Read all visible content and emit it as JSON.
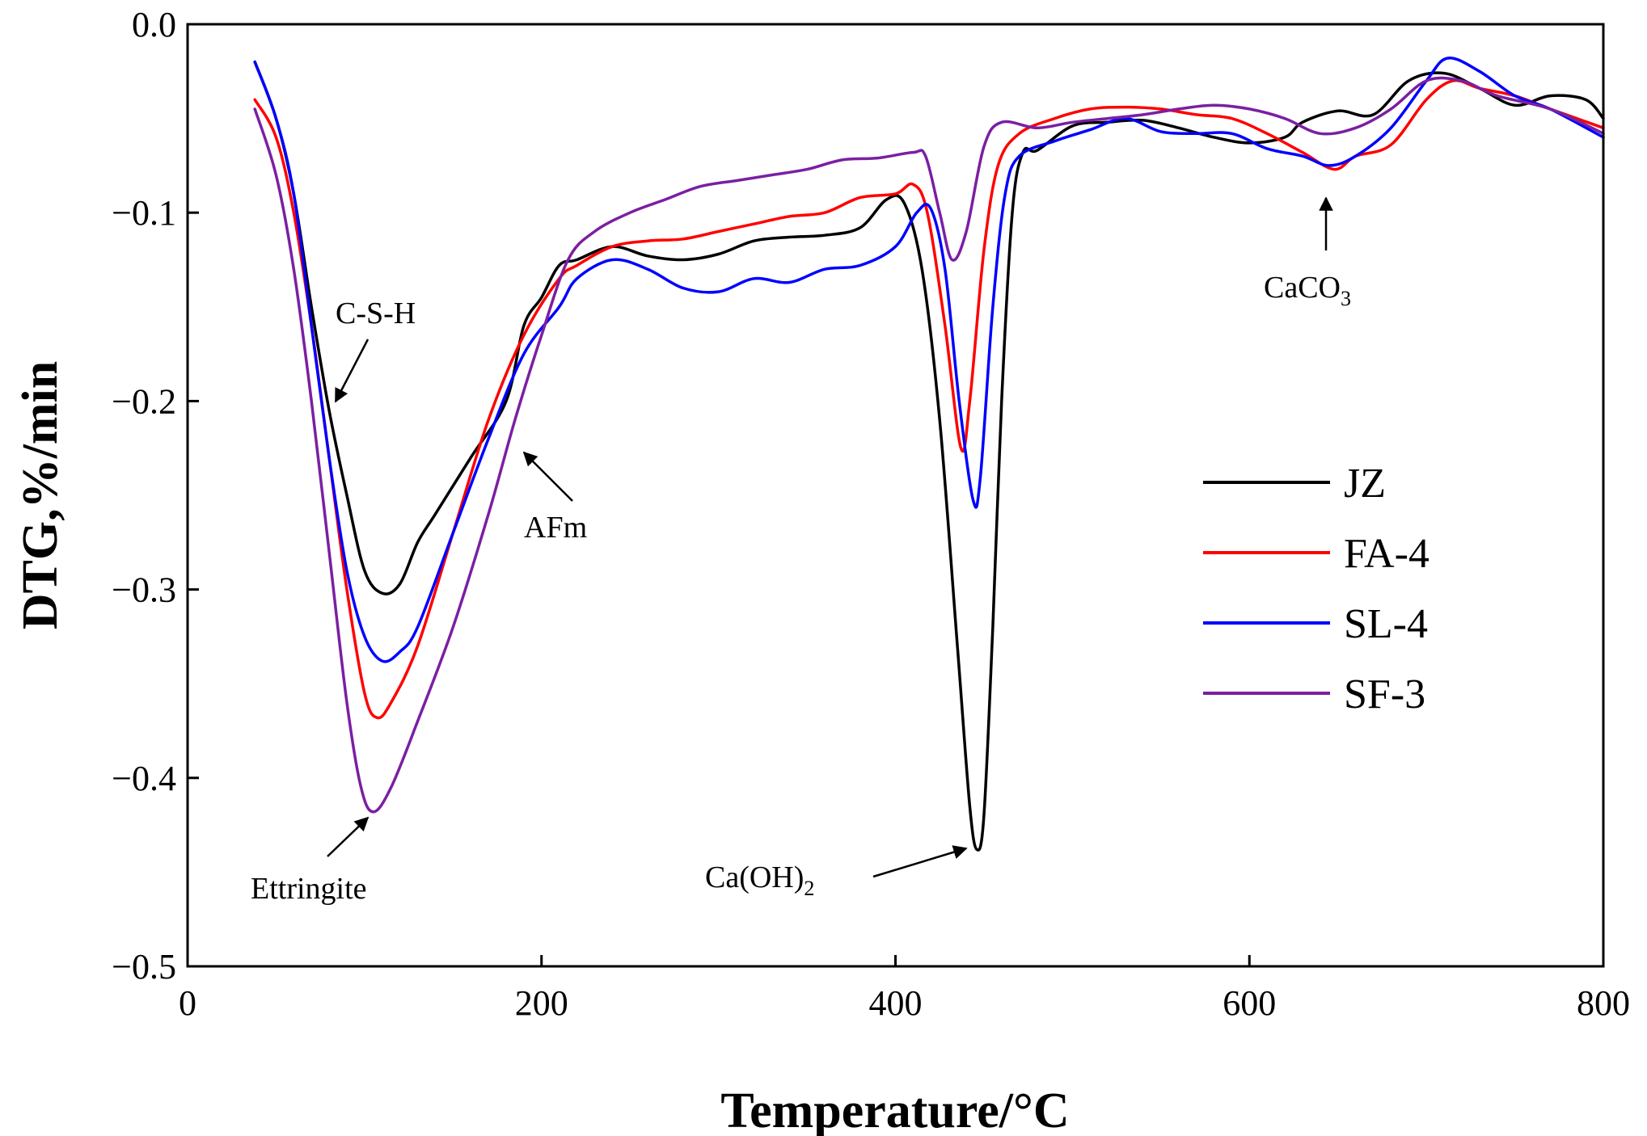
{
  "chart_data": {
    "type": "line",
    "title": "",
    "xlabel": "Temperature/°C",
    "ylabel": "DTG,%/min",
    "xlim": [
      0,
      800
    ],
    "ylim": [
      -0.5,
      0.0
    ],
    "xticks": [
      0,
      200,
      400,
      600,
      800
    ],
    "xtick_labels": [
      "0",
      "200",
      "400",
      "600",
      "800"
    ],
    "yticks": [
      0.0,
      -0.1,
      -0.2,
      -0.3,
      -0.4,
      -0.5
    ],
    "ytick_labels": [
      "0.0",
      "−0.1",
      "−0.2",
      "−0.3",
      "−0.4",
      "−0.5"
    ],
    "grid": false,
    "legend_position": "right-center",
    "series": [
      {
        "name": "JZ",
        "color": "#000000",
        "points": [
          [
            38,
            -0.02
          ],
          [
            50,
            -0.05
          ],
          [
            60,
            -0.09
          ],
          [
            70,
            -0.15
          ],
          [
            80,
            -0.205
          ],
          [
            90,
            -0.25
          ],
          [
            100,
            -0.29
          ],
          [
            110,
            -0.302
          ],
          [
            120,
            -0.297
          ],
          [
            130,
            -0.275
          ],
          [
            140,
            -0.26
          ],
          [
            160,
            -0.23
          ],
          [
            180,
            -0.2
          ],
          [
            190,
            -0.16
          ],
          [
            200,
            -0.145
          ],
          [
            210,
            -0.128
          ],
          [
            220,
            -0.125
          ],
          [
            240,
            -0.118
          ],
          [
            260,
            -0.123
          ],
          [
            280,
            -0.125
          ],
          [
            300,
            -0.122
          ],
          [
            320,
            -0.115
          ],
          [
            340,
            -0.113
          ],
          [
            360,
            -0.112
          ],
          [
            380,
            -0.108
          ],
          [
            395,
            -0.093
          ],
          [
            405,
            -0.095
          ],
          [
            415,
            -0.13
          ],
          [
            425,
            -0.21
          ],
          [
            435,
            -0.33
          ],
          [
            442,
            -0.415
          ],
          [
            446,
            -0.438
          ],
          [
            450,
            -0.42
          ],
          [
            455,
            -0.32
          ],
          [
            460,
            -0.2
          ],
          [
            466,
            -0.1
          ],
          [
            472,
            -0.068
          ],
          [
            480,
            -0.067
          ],
          [
            500,
            -0.054
          ],
          [
            520,
            -0.052
          ],
          [
            540,
            -0.051
          ],
          [
            560,
            -0.055
          ],
          [
            580,
            -0.06
          ],
          [
            600,
            -0.063
          ],
          [
            620,
            -0.06
          ],
          [
            630,
            -0.052
          ],
          [
            650,
            -0.046
          ],
          [
            670,
            -0.048
          ],
          [
            690,
            -0.03
          ],
          [
            710,
            -0.026
          ],
          [
            730,
            -0.034
          ],
          [
            750,
            -0.043
          ],
          [
            770,
            -0.038
          ],
          [
            790,
            -0.04
          ],
          [
            800,
            -0.05
          ]
        ]
      },
      {
        "name": "FA-4",
        "color": "#ff0000",
        "points": [
          [
            38,
            -0.04
          ],
          [
            50,
            -0.06
          ],
          [
            60,
            -0.1
          ],
          [
            70,
            -0.16
          ],
          [
            80,
            -0.23
          ],
          [
            90,
            -0.3
          ],
          [
            100,
            -0.355
          ],
          [
            107,
            -0.368
          ],
          [
            115,
            -0.36
          ],
          [
            130,
            -0.33
          ],
          [
            150,
            -0.27
          ],
          [
            170,
            -0.21
          ],
          [
            190,
            -0.165
          ],
          [
            210,
            -0.135
          ],
          [
            220,
            -0.128
          ],
          [
            240,
            -0.118
          ],
          [
            260,
            -0.115
          ],
          [
            280,
            -0.114
          ],
          [
            300,
            -0.11
          ],
          [
            320,
            -0.106
          ],
          [
            340,
            -0.102
          ],
          [
            360,
            -0.1
          ],
          [
            380,
            -0.092
          ],
          [
            400,
            -0.09
          ],
          [
            410,
            -0.085
          ],
          [
            418,
            -0.1
          ],
          [
            428,
            -0.16
          ],
          [
            437,
            -0.225
          ],
          [
            442,
            -0.2
          ],
          [
            450,
            -0.12
          ],
          [
            458,
            -0.075
          ],
          [
            470,
            -0.058
          ],
          [
            490,
            -0.05
          ],
          [
            510,
            -0.045
          ],
          [
            530,
            -0.044
          ],
          [
            550,
            -0.045
          ],
          [
            570,
            -0.048
          ],
          [
            590,
            -0.05
          ],
          [
            610,
            -0.058
          ],
          [
            630,
            -0.068
          ],
          [
            648,
            -0.077
          ],
          [
            660,
            -0.07
          ],
          [
            680,
            -0.064
          ],
          [
            700,
            -0.04
          ],
          [
            715,
            -0.03
          ],
          [
            730,
            -0.034
          ],
          [
            750,
            -0.038
          ],
          [
            770,
            -0.045
          ],
          [
            800,
            -0.055
          ]
        ]
      },
      {
        "name": "SL-4",
        "color": "#0000ff",
        "points": [
          [
            38,
            -0.02
          ],
          [
            50,
            -0.05
          ],
          [
            60,
            -0.09
          ],
          [
            70,
            -0.16
          ],
          [
            80,
            -0.23
          ],
          [
            90,
            -0.29
          ],
          [
            100,
            -0.325
          ],
          [
            110,
            -0.338
          ],
          [
            120,
            -0.333
          ],
          [
            130,
            -0.32
          ],
          [
            150,
            -0.27
          ],
          [
            170,
            -0.22
          ],
          [
            190,
            -0.175
          ],
          [
            210,
            -0.15
          ],
          [
            220,
            -0.135
          ],
          [
            240,
            -0.125
          ],
          [
            260,
            -0.13
          ],
          [
            280,
            -0.14
          ],
          [
            300,
            -0.142
          ],
          [
            320,
            -0.135
          ],
          [
            340,
            -0.137
          ],
          [
            360,
            -0.13
          ],
          [
            380,
            -0.128
          ],
          [
            400,
            -0.118
          ],
          [
            412,
            -0.1
          ],
          [
            420,
            -0.098
          ],
          [
            428,
            -0.13
          ],
          [
            436,
            -0.2
          ],
          [
            444,
            -0.253
          ],
          [
            448,
            -0.24
          ],
          [
            455,
            -0.15
          ],
          [
            462,
            -0.09
          ],
          [
            470,
            -0.07
          ],
          [
            490,
            -0.062
          ],
          [
            510,
            -0.056
          ],
          [
            530,
            -0.05
          ],
          [
            550,
            -0.057
          ],
          [
            570,
            -0.058
          ],
          [
            590,
            -0.058
          ],
          [
            610,
            -0.066
          ],
          [
            630,
            -0.07
          ],
          [
            645,
            -0.075
          ],
          [
            660,
            -0.07
          ],
          [
            680,
            -0.055
          ],
          [
            700,
            -0.03
          ],
          [
            712,
            -0.018
          ],
          [
            730,
            -0.025
          ],
          [
            750,
            -0.038
          ],
          [
            770,
            -0.045
          ],
          [
            800,
            -0.06
          ]
        ]
      },
      {
        "name": "SF-3",
        "color": "#7b1fa2",
        "points": [
          [
            38,
            -0.045
          ],
          [
            50,
            -0.08
          ],
          [
            60,
            -0.13
          ],
          [
            70,
            -0.2
          ],
          [
            80,
            -0.28
          ],
          [
            90,
            -0.36
          ],
          [
            98,
            -0.405
          ],
          [
            105,
            -0.418
          ],
          [
            115,
            -0.405
          ],
          [
            130,
            -0.37
          ],
          [
            150,
            -0.32
          ],
          [
            170,
            -0.26
          ],
          [
            185,
            -0.21
          ],
          [
            200,
            -0.165
          ],
          [
            215,
            -0.125
          ],
          [
            230,
            -0.11
          ],
          [
            250,
            -0.1
          ],
          [
            270,
            -0.093
          ],
          [
            290,
            -0.086
          ],
          [
            310,
            -0.083
          ],
          [
            330,
            -0.08
          ],
          [
            350,
            -0.077
          ],
          [
            370,
            -0.072
          ],
          [
            390,
            -0.071
          ],
          [
            410,
            -0.068
          ],
          [
            417,
            -0.07
          ],
          [
            425,
            -0.1
          ],
          [
            432,
            -0.125
          ],
          [
            440,
            -0.11
          ],
          [
            450,
            -0.065
          ],
          [
            460,
            -0.052
          ],
          [
            480,
            -0.055
          ],
          [
            500,
            -0.052
          ],
          [
            520,
            -0.05
          ],
          [
            540,
            -0.048
          ],
          [
            560,
            -0.045
          ],
          [
            580,
            -0.043
          ],
          [
            600,
            -0.045
          ],
          [
            620,
            -0.05
          ],
          [
            640,
            -0.058
          ],
          [
            660,
            -0.055
          ],
          [
            680,
            -0.045
          ],
          [
            700,
            -0.03
          ],
          [
            720,
            -0.03
          ],
          [
            740,
            -0.038
          ],
          [
            770,
            -0.045
          ],
          [
            800,
            -0.058
          ]
        ]
      }
    ],
    "annotations": [
      {
        "id": "csh",
        "text": "C-S-H",
        "sub": ""
      },
      {
        "id": "afm",
        "text": "AFm",
        "sub": ""
      },
      {
        "id": "ettringite",
        "text": "Ettringite",
        "sub": ""
      },
      {
        "id": "caoh2",
        "text": "Ca(OH)",
        "sub": "2"
      },
      {
        "id": "caco3",
        "text": "CaCO",
        "sub": "3"
      }
    ]
  }
}
